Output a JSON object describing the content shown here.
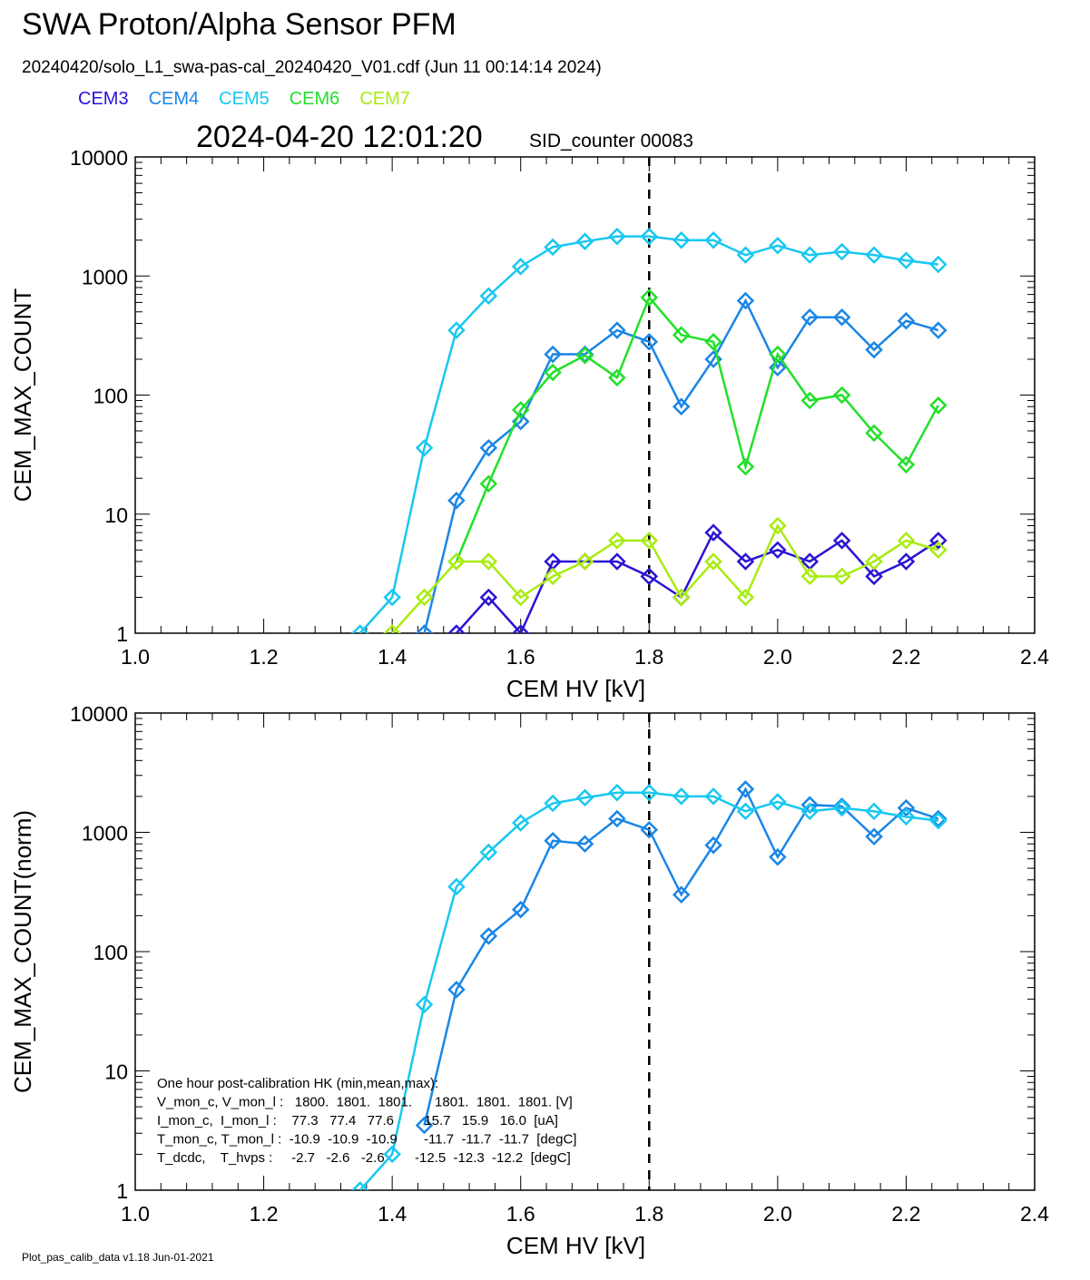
{
  "header": {
    "title": "SWA Proton/Alpha Sensor PFM",
    "subtitle": "20240420/solo_L1_swa-pas-cal_20240420_V01.cdf  (Jun 11 00:14:14 2024)",
    "timestamp": "2024-04-20 12:01:20",
    "sid_counter": "SID_counter 00083"
  },
  "legend": [
    {
      "name": "CEM3",
      "color": "#2a14d4"
    },
    {
      "name": "CEM4",
      "color": "#1a86e6"
    },
    {
      "name": "CEM5",
      "color": "#18c8f0"
    },
    {
      "name": "CEM6",
      "color": "#22e02a"
    },
    {
      "name": "CEM7",
      "color": "#a8ec10"
    }
  ],
  "footer": "Plot_pas_calib_data v1.18 Jun-01-2021",
  "chart_data": [
    {
      "type": "line",
      "xlabel": "CEM HV [kV]",
      "ylabel": "CEM_MAX_COUNT",
      "xlim": [
        1.0,
        2.4
      ],
      "ylim": [
        1,
        10000
      ],
      "yscale": "log",
      "xticks": [
        "1.0",
        "1.2",
        "1.4",
        "1.6",
        "1.8",
        "2.0",
        "2.2",
        "2.4"
      ],
      "yticks": [
        "1",
        "10",
        "100",
        "1000",
        "10000"
      ],
      "vline_x": 1.8,
      "x": [
        1.35,
        1.4,
        1.45,
        1.5,
        1.55,
        1.6,
        1.65,
        1.7,
        1.75,
        1.8,
        1.85,
        1.9,
        1.95,
        2.0,
        2.05,
        2.1,
        2.15,
        2.2,
        2.25
      ],
      "series": [
        {
          "name": "CEM3",
          "color": "#2a14d4",
          "values": [
            null,
            null,
            null,
            1,
            2,
            1,
            4,
            4,
            4,
            3,
            2,
            7,
            4,
            5,
            4,
            6,
            3,
            4,
            6
          ]
        },
        {
          "name": "CEM4",
          "color": "#1a86e6",
          "values": [
            null,
            null,
            1,
            13,
            36,
            60,
            220,
            220,
            350,
            280,
            80,
            200,
            620,
            170,
            450,
            450,
            240,
            420,
            350
          ]
        },
        {
          "name": "CEM5",
          "color": "#18c8f0",
          "values": [
            1,
            2,
            36,
            350,
            680,
            1200,
            1750,
            1950,
            2150,
            2150,
            2000,
            2000,
            1500,
            1800,
            1500,
            1600,
            1500,
            1350,
            1250
          ]
        },
        {
          "name": "CEM6",
          "color": "#22e02a",
          "values": [
            null,
            null,
            null,
            4,
            18,
            75,
            155,
            215,
            140,
            660,
            320,
            280,
            25,
            220,
            90,
            100,
            48,
            26,
            82
          ]
        },
        {
          "name": "CEM7",
          "color": "#a8ec10",
          "values": [
            null,
            1,
            2,
            4,
            4,
            2,
            3,
            4,
            6,
            6,
            2,
            4,
            2,
            8,
            3,
            3,
            4,
            6,
            5
          ]
        }
      ]
    },
    {
      "type": "line",
      "xlabel": "CEM HV [kV]",
      "ylabel": "CEM_MAX_COUNT(norm)",
      "xlim": [
        1.0,
        2.4
      ],
      "ylim": [
        1,
        10000
      ],
      "yscale": "log",
      "xticks": [
        "1.0",
        "1.2",
        "1.4",
        "1.6",
        "1.8",
        "2.0",
        "2.2",
        "2.4"
      ],
      "yticks": [
        "1",
        "10",
        "100",
        "1000",
        "10000"
      ],
      "vline_x": 1.8,
      "x": [
        1.35,
        1.4,
        1.45,
        1.5,
        1.55,
        1.6,
        1.65,
        1.7,
        1.75,
        1.8,
        1.85,
        1.9,
        1.95,
        2.0,
        2.05,
        2.1,
        2.15,
        2.2,
        2.25
      ],
      "series": [
        {
          "name": "CEM4",
          "color": "#1a86e6",
          "values": [
            null,
            null,
            3.5,
            48,
            135,
            225,
            850,
            800,
            1300,
            1050,
            300,
            780,
            2300,
            620,
            1700,
            1650,
            920,
            1600,
            1300
          ]
        },
        {
          "name": "CEM5",
          "color": "#18c8f0",
          "values": [
            1,
            2,
            36,
            350,
            680,
            1200,
            1750,
            1950,
            2150,
            2150,
            2000,
            2000,
            1500,
            1800,
            1500,
            1600,
            1500,
            1350,
            1250
          ]
        }
      ],
      "annotation": [
        "One hour post-calibration HK (min,mean,max):",
        "V_mon_c, V_mon_l :   1800.  1801.  1801.      1801.  1801.  1801. [V]",
        "I_mon_c,  I_mon_l :    77.3   77.4   77.6        15.7   15.9   16.0  [uA]",
        "T_mon_c, T_mon_l :  -10.9  -10.9  -10.9       -11.7  -11.7  -11.7  [degC]",
        "T_dcdc,    T_hvps :     -2.7   -2.6   -2.6        -12.5  -12.3  -12.2  [degC]"
      ]
    }
  ]
}
